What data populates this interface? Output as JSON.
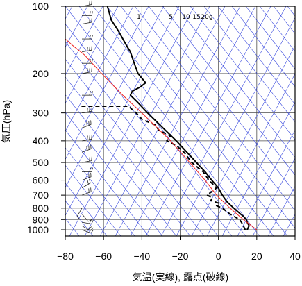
{
  "chart_data": {
    "type": "line",
    "subtype": "skew-T log-p aerological diagram",
    "xlabel": "気温(実線), 露点(破線)",
    "ylabel": "気圧(hPa)",
    "xlim": [
      -80,
      40
    ],
    "ylim": [
      1050,
      100
    ],
    "y_scale": "log",
    "x_ticks": [
      "−80",
      "−60",
      "−40",
      "−20",
      "0",
      "20",
      "40"
    ],
    "x_tick_values": [
      -80,
      -60,
      -40,
      -20,
      0,
      20,
      40
    ],
    "y_ticks": [
      "100",
      "200",
      "300",
      "400",
      "500",
      "600",
      "700",
      "800",
      "900",
      "1000"
    ],
    "y_tick_values": [
      100,
      200,
      300,
      400,
      500,
      600,
      700,
      800,
      900,
      1000
    ],
    "mixing_ratio_labels": [
      "1",
      "5",
      "10",
      "15",
      "20g"
    ],
    "grid": true,
    "colors": {
      "grid": "#4d4d4d",
      "adiabat": "#3344dd",
      "temperature": "#000000",
      "dewpoint": "#000000",
      "parcel": "#ee2222",
      "wind": "#222222"
    },
    "series": [
      {
        "role": "temperature",
        "style": "solid",
        "points": [
          {
            "p": 1000,
            "t": 15
          },
          {
            "p": 960,
            "t": 16
          },
          {
            "p": 925,
            "t": 15
          },
          {
            "p": 900,
            "t": 14.5
          },
          {
            "p": 870,
            "t": 13
          },
          {
            "p": 850,
            "t": 11.5
          },
          {
            "p": 800,
            "t": 8
          },
          {
            "p": 750,
            "t": 4.5
          },
          {
            "p": 700,
            "t": 2
          },
          {
            "p": 650,
            "t": 0
          },
          {
            "p": 600,
            "t": -3.5
          },
          {
            "p": 550,
            "t": -7
          },
          {
            "p": 500,
            "t": -11.5
          },
          {
            "p": 450,
            "t": -16.5
          },
          {
            "p": 400,
            "t": -22
          },
          {
            "p": 350,
            "t": -29
          },
          {
            "p": 300,
            "t": -37
          },
          {
            "p": 270,
            "t": -42
          },
          {
            "p": 250,
            "t": -46
          },
          {
            "p": 240,
            "t": -45
          },
          {
            "p": 230,
            "t": -41
          },
          {
            "p": 220,
            "t": -38
          },
          {
            "p": 200,
            "t": -42
          },
          {
            "p": 180,
            "t": -44
          },
          {
            "p": 160,
            "t": -46
          },
          {
            "p": 150,
            "t": -48
          },
          {
            "p": 130,
            "t": -52
          },
          {
            "p": 115,
            "t": -56
          },
          {
            "p": 100,
            "t": -58
          }
        ]
      },
      {
        "role": "dewpoint",
        "style": "dashed",
        "points": [
          {
            "p": 1000,
            "t": 14
          },
          {
            "p": 960,
            "t": 13
          },
          {
            "p": 925,
            "t": 12
          },
          {
            "p": 900,
            "t": 11
          },
          {
            "p": 850,
            "t": 6
          },
          {
            "p": 800,
            "t": 2
          },
          {
            "p": 780,
            "t": -1
          },
          {
            "p": 760,
            "t": 0
          },
          {
            "p": 740,
            "t": -4
          },
          {
            "p": 720,
            "t": -3
          },
          {
            "p": 700,
            "t": -6
          },
          {
            "p": 680,
            "t": -4
          },
          {
            "p": 650,
            "t": -1
          },
          {
            "p": 600,
            "t": -5
          },
          {
            "p": 550,
            "t": -8
          },
          {
            "p": 500,
            "t": -14
          },
          {
            "p": 450,
            "t": -18
          },
          {
            "p": 420,
            "t": -22
          },
          {
            "p": 400,
            "t": -27
          },
          {
            "p": 380,
            "t": -25
          },
          {
            "p": 360,
            "t": -31
          },
          {
            "p": 340,
            "t": -33
          },
          {
            "p": 320,
            "t": -40
          },
          {
            "p": 300,
            "t": -43
          },
          {
            "p": 285,
            "t": -46
          },
          {
            "p": 280,
            "t": -47
          },
          {
            "p": 280,
            "t": -72
          }
        ]
      },
      {
        "role": "parcel",
        "style": "solid",
        "points": [
          {
            "p": 1000,
            "t": 20
          },
          {
            "p": 900,
            "t": 13
          },
          {
            "p": 800,
            "t": 6
          },
          {
            "p": 700,
            "t": -1
          },
          {
            "p": 600,
            "t": -7
          },
          {
            "p": 500,
            "t": -15
          },
          {
            "p": 400,
            "t": -25
          },
          {
            "p": 300,
            "t": -40
          },
          {
            "p": 250,
            "t": -50
          },
          {
            "p": 200,
            "t": -61
          },
          {
            "p": 165,
            "t": -70
          },
          {
            "p": 150,
            "t": -76
          },
          {
            "p": 140,
            "t": -80
          }
        ]
      }
    ],
    "wind_barbs": [
      {
        "p": 1000,
        "speed": 10,
        "dir": 290
      },
      {
        "p": 960,
        "speed": 15,
        "dir": 300
      },
      {
        "p": 925,
        "speed": 15,
        "dir": 280
      },
      {
        "p": 850,
        "speed": 10,
        "dir": 320
      },
      {
        "p": 800,
        "speed": 5,
        "dir": 30
      },
      {
        "p": 700,
        "speed": 15,
        "dir": 250
      },
      {
        "p": 650,
        "speed": 20,
        "dir": 240
      },
      {
        "p": 600,
        "speed": 20,
        "dir": 250
      },
      {
        "p": 550,
        "speed": 15,
        "dir": 270
      },
      {
        "p": 500,
        "speed": 20,
        "dir": 260
      },
      {
        "p": 450,
        "speed": 25,
        "dir": 250
      },
      {
        "p": 400,
        "speed": 25,
        "dir": 260
      },
      {
        "p": 350,
        "speed": 30,
        "dir": 250
      },
      {
        "p": 300,
        "speed": 25,
        "dir": 260
      },
      {
        "p": 250,
        "speed": 20,
        "dir": 270
      },
      {
        "p": 200,
        "speed": 25,
        "dir": 260
      },
      {
        "p": 180,
        "speed": 20,
        "dir": 270
      },
      {
        "p": 160,
        "speed": 25,
        "dir": 260
      },
      {
        "p": 140,
        "speed": 20,
        "dir": 270
      },
      {
        "p": 120,
        "speed": 15,
        "dir": 260
      },
      {
        "p": 110,
        "speed": 20,
        "dir": 270
      },
      {
        "p": 100,
        "speed": 15,
        "dir": 260
      }
    ]
  }
}
